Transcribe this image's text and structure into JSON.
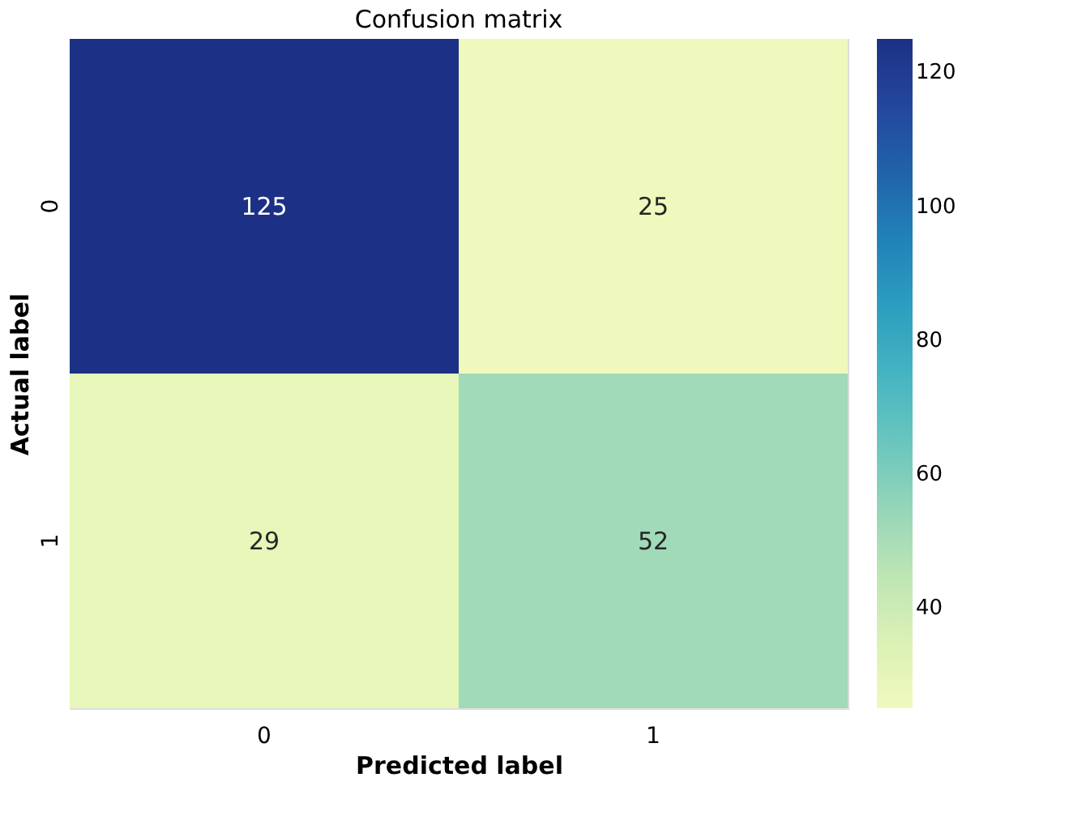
{
  "chart_data": {
    "type": "heatmap",
    "title": "Confusion matrix",
    "xlabel": "Predicted label",
    "ylabel": "Actual label",
    "categories": [
      "0",
      "1"
    ],
    "y_categories": [
      "0",
      "1"
    ],
    "cells": [
      [
        125,
        25
      ],
      [
        29,
        52
      ]
    ],
    "clim": [
      25,
      125
    ],
    "cticks": [
      40,
      60,
      80,
      100,
      120
    ],
    "data_labels": true,
    "grid": false
  }
}
